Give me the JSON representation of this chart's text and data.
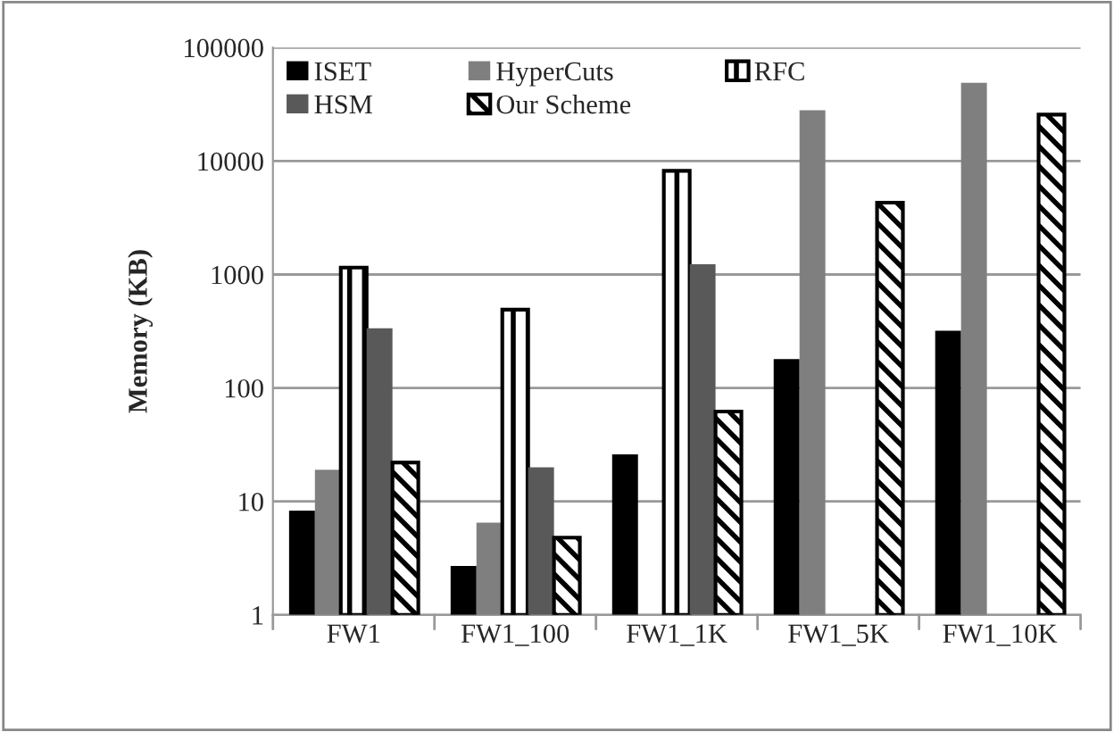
{
  "chart_data": {
    "type": "bar",
    "ylabel": "Memory (KB)",
    "categories": [
      "FW1",
      "FW1_100",
      "FW1_1K",
      "FW1_5K",
      "FW1_10K"
    ],
    "series": [
      {
        "name": "ISET",
        "color": "#000000",
        "values": [
          8.3,
          2.7,
          26,
          180,
          320
        ]
      },
      {
        "name": "HyperCuts",
        "color": "#7f7f7f",
        "values": [
          19,
          6.5,
          null,
          28000,
          49000
        ]
      },
      {
        "name": "RFC",
        "color": "#000000",
        "values": [
          1150,
          490,
          8200,
          null,
          null
        ]
      },
      {
        "name": "HSM",
        "color": "#595959",
        "values": [
          335,
          20,
          1230,
          null,
          null
        ]
      },
      {
        "name": "Our Scheme",
        "color": "#000000",
        "values": [
          22,
          4.8,
          62,
          4300,
          25700
        ]
      }
    ],
    "log": "y",
    "ylim": [
      1,
      100000
    ],
    "yticks": [
      1,
      10,
      100,
      1000,
      10000,
      100000
    ],
    "grid": "y",
    "legend": "top left"
  }
}
